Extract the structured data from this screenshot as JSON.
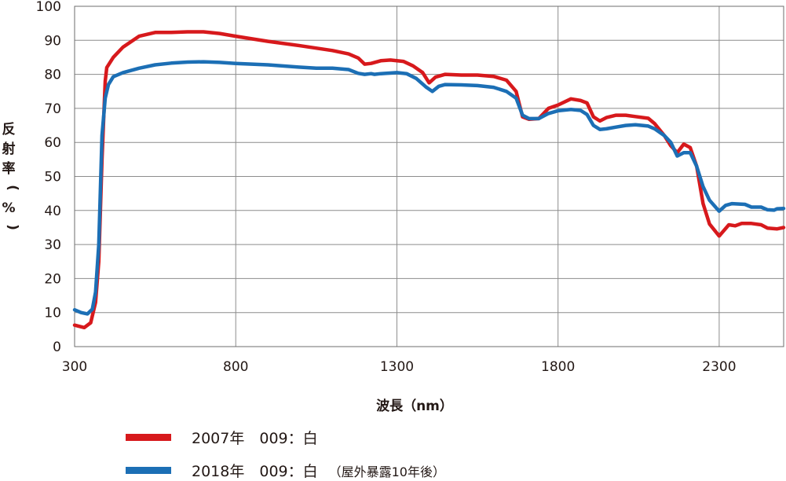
{
  "chart_data": {
    "type": "line",
    "xlabel": "波長（nm）",
    "ylabel": "反射率（%）",
    "xlim": [
      300,
      2500
    ],
    "ylim": [
      0,
      100
    ],
    "xticks": [
      "300",
      "800",
      "1300",
      "1800",
      "2300"
    ],
    "yticks": [
      "0",
      "10",
      "20",
      "30",
      "40",
      "50",
      "60",
      "70",
      "80",
      "90",
      "100"
    ],
    "grid": true,
    "legend_position": "bottom-left",
    "series": [
      {
        "name": "2007年　009：白",
        "note": "",
        "color": "#d7191c",
        "points": [
          [
            300,
            6.3
          ],
          [
            330,
            5.6
          ],
          [
            350,
            7
          ],
          [
            365,
            13
          ],
          [
            375,
            25
          ],
          [
            385,
            55
          ],
          [
            395,
            78
          ],
          [
            400,
            82
          ],
          [
            420,
            85
          ],
          [
            450,
            88
          ],
          [
            500,
            91.2
          ],
          [
            550,
            92.3
          ],
          [
            600,
            92.3
          ],
          [
            650,
            92.5
          ],
          [
            700,
            92.5
          ],
          [
            750,
            92
          ],
          [
            800,
            91.2
          ],
          [
            900,
            89.7
          ],
          [
            1000,
            88.4
          ],
          [
            1100,
            87
          ],
          [
            1150,
            86
          ],
          [
            1180,
            84.8
          ],
          [
            1200,
            83
          ],
          [
            1220,
            83.2
          ],
          [
            1250,
            84
          ],
          [
            1280,
            84.2
          ],
          [
            1320,
            83.8
          ],
          [
            1350,
            82.5
          ],
          [
            1380,
            80.5
          ],
          [
            1400,
            77.5
          ],
          [
            1420,
            79.2
          ],
          [
            1450,
            80
          ],
          [
            1500,
            79.8
          ],
          [
            1550,
            79.8
          ],
          [
            1600,
            79.4
          ],
          [
            1640,
            78.3
          ],
          [
            1670,
            75
          ],
          [
            1690,
            67.5
          ],
          [
            1710,
            66.8
          ],
          [
            1740,
            67
          ],
          [
            1770,
            70
          ],
          [
            1800,
            71
          ],
          [
            1840,
            72.8
          ],
          [
            1870,
            72.3
          ],
          [
            1890,
            71.6
          ],
          [
            1910,
            67.5
          ],
          [
            1930,
            66.3
          ],
          [
            1950,
            67.3
          ],
          [
            1980,
            68
          ],
          [
            2010,
            68
          ],
          [
            2040,
            67.6
          ],
          [
            2080,
            67.1
          ],
          [
            2100,
            65.5
          ],
          [
            2130,
            62
          ],
          [
            2150,
            59
          ],
          [
            2170,
            57
          ],
          [
            2190,
            59.5
          ],
          [
            2210,
            58.5
          ],
          [
            2230,
            53
          ],
          [
            2250,
            42
          ],
          [
            2270,
            36
          ],
          [
            2300,
            32.5
          ],
          [
            2330,
            35.8
          ],
          [
            2350,
            35.5
          ],
          [
            2370,
            36.2
          ],
          [
            2400,
            36.2
          ],
          [
            2430,
            35.8
          ],
          [
            2450,
            34.8
          ],
          [
            2480,
            34.6
          ],
          [
            2500,
            35
          ]
        ]
      },
      {
        "name": "2018年　009：白",
        "note": "（屋外暴露10年後）",
        "color": "#1c6fb5",
        "points": [
          [
            300,
            10.8
          ],
          [
            320,
            10
          ],
          [
            340,
            9.6
          ],
          [
            355,
            11
          ],
          [
            365,
            16
          ],
          [
            375,
            30
          ],
          [
            385,
            62
          ],
          [
            395,
            73
          ],
          [
            405,
            77
          ],
          [
            420,
            79.3
          ],
          [
            450,
            80.5
          ],
          [
            500,
            81.8
          ],
          [
            550,
            82.8
          ],
          [
            600,
            83.3
          ],
          [
            650,
            83.6
          ],
          [
            700,
            83.7
          ],
          [
            750,
            83.5
          ],
          [
            800,
            83.2
          ],
          [
            900,
            82.8
          ],
          [
            1000,
            82.1
          ],
          [
            1050,
            81.8
          ],
          [
            1100,
            81.8
          ],
          [
            1150,
            81.4
          ],
          [
            1180,
            80.3
          ],
          [
            1200,
            80
          ],
          [
            1220,
            80.2
          ],
          [
            1230,
            80
          ],
          [
            1250,
            80.2
          ],
          [
            1300,
            80.5
          ],
          [
            1330,
            80.2
          ],
          [
            1360,
            78.8
          ],
          [
            1390,
            76.3
          ],
          [
            1410,
            75
          ],
          [
            1430,
            76.5
          ],
          [
            1450,
            77
          ],
          [
            1500,
            76.9
          ],
          [
            1550,
            76.7
          ],
          [
            1600,
            76.2
          ],
          [
            1640,
            75
          ],
          [
            1670,
            73
          ],
          [
            1690,
            68
          ],
          [
            1710,
            67
          ],
          [
            1740,
            67
          ],
          [
            1770,
            68.5
          ],
          [
            1800,
            69.3
          ],
          [
            1840,
            69.7
          ],
          [
            1870,
            69.4
          ],
          [
            1890,
            68.2
          ],
          [
            1910,
            65
          ],
          [
            1930,
            63.8
          ],
          [
            1950,
            64
          ],
          [
            1980,
            64.5
          ],
          [
            2010,
            65
          ],
          [
            2040,
            65.2
          ],
          [
            2080,
            64.8
          ],
          [
            2100,
            64
          ],
          [
            2130,
            62
          ],
          [
            2150,
            60
          ],
          [
            2170,
            56
          ],
          [
            2190,
            57
          ],
          [
            2210,
            57
          ],
          [
            2230,
            53
          ],
          [
            2250,
            47
          ],
          [
            2270,
            43
          ],
          [
            2300,
            39.8
          ],
          [
            2320,
            41.5
          ],
          [
            2340,
            42
          ],
          [
            2380,
            41.8
          ],
          [
            2400,
            41
          ],
          [
            2430,
            41
          ],
          [
            2450,
            40.2
          ],
          [
            2470,
            40.1
          ],
          [
            2480,
            40.5
          ],
          [
            2500,
            40.6
          ]
        ]
      }
    ]
  }
}
